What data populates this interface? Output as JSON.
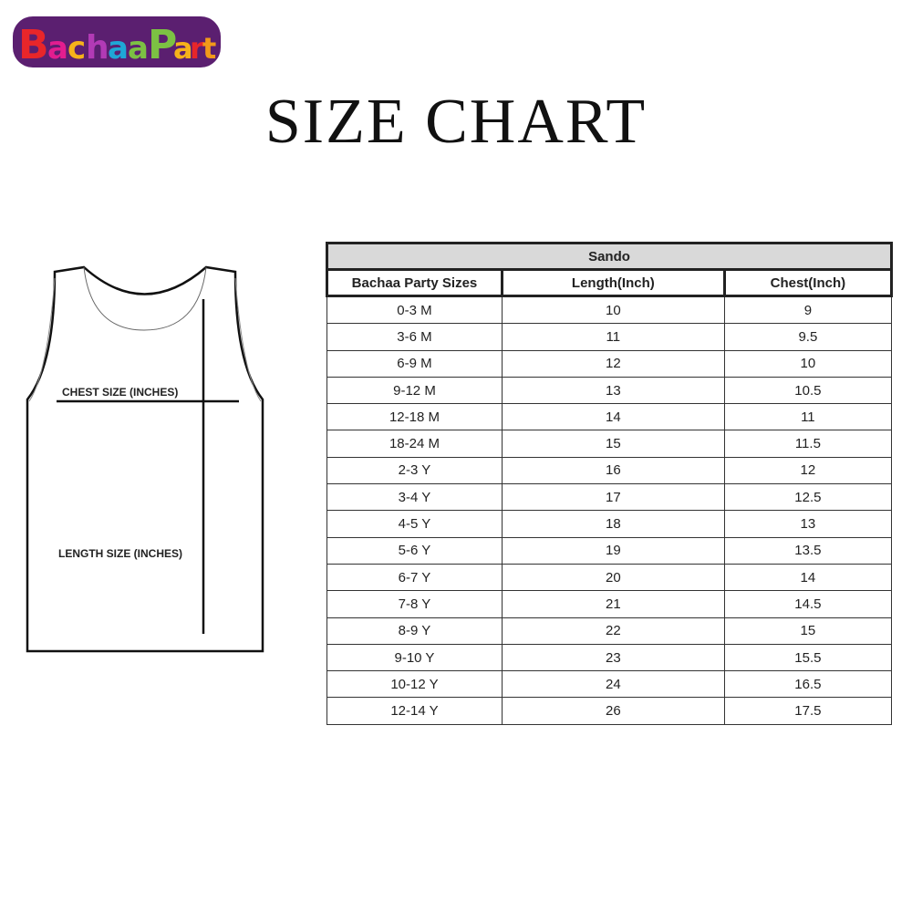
{
  "logo": {
    "text": "BachaaParty",
    "colors": [
      "#e8262a",
      "#e21d8f",
      "#f6b21a",
      "#7cc143",
      "#7a2c8e"
    ]
  },
  "title": "SIZE CHART",
  "diagram": {
    "chest_label": "CHEST SIZE (INCHES)",
    "length_label": "LENGTH SIZE (INCHES)"
  },
  "table": {
    "group": "Sando",
    "headers": [
      "Bachaa Party Sizes",
      "Length(Inch)",
      "Chest(Inch)"
    ],
    "rows": [
      [
        "0-3 M",
        "10",
        "9"
      ],
      [
        "3-6 M",
        "11",
        "9.5"
      ],
      [
        "6-9 M",
        "12",
        "10"
      ],
      [
        "9-12 M",
        "13",
        "10.5"
      ],
      [
        "12-18 M",
        "14",
        "11"
      ],
      [
        "18-24 M",
        "15",
        "11.5"
      ],
      [
        "2-3 Y",
        "16",
        "12"
      ],
      [
        "3-4 Y",
        "17",
        "12.5"
      ],
      [
        "4-5 Y",
        "18",
        "13"
      ],
      [
        "5-6 Y",
        "19",
        "13.5"
      ],
      [
        "6-7 Y",
        "20",
        "14"
      ],
      [
        "7-8 Y",
        "21",
        "14.5"
      ],
      [
        "8-9 Y",
        "22",
        "15"
      ],
      [
        "9-10 Y",
        "23",
        "15.5"
      ],
      [
        "10-12 Y",
        "24",
        "16.5"
      ],
      [
        "12-14 Y",
        "26",
        "17.5"
      ]
    ]
  }
}
